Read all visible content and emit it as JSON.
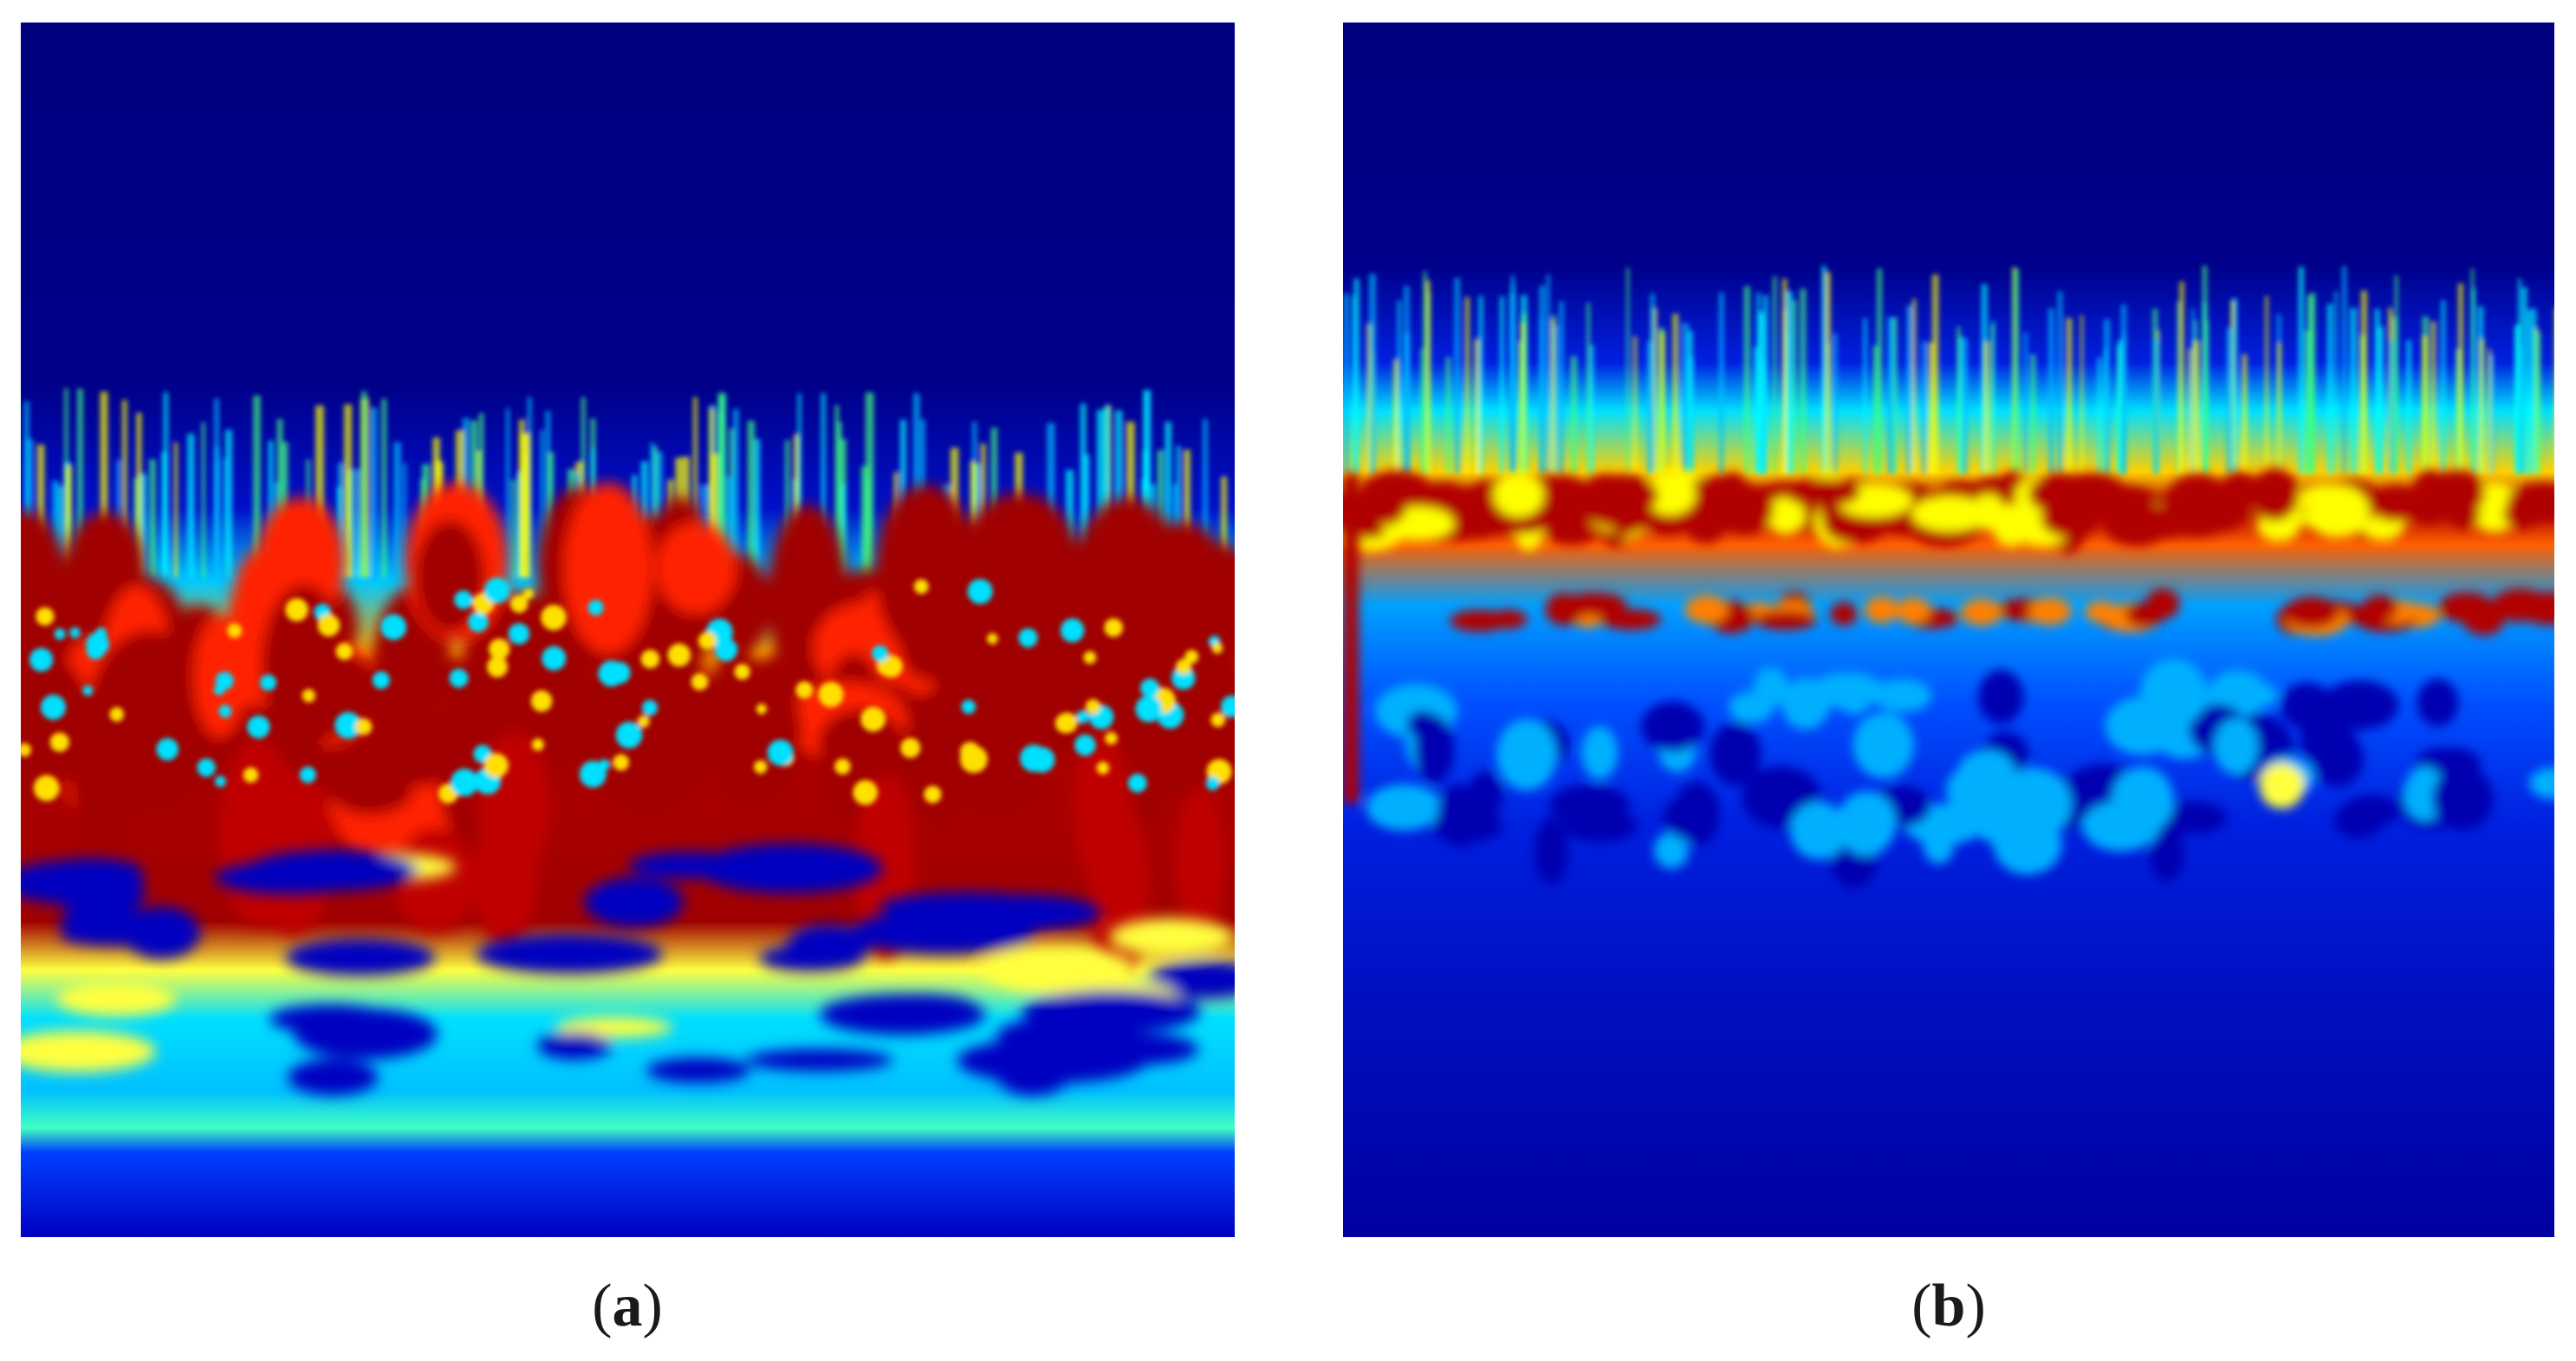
{
  "figure": {
    "panels": [
      {
        "id": "a",
        "caption_label": "a",
        "image": "wavelet-scalogram-a",
        "colormap": "jet"
      },
      {
        "id": "b",
        "caption_label": "b",
        "image": "wavelet-scalogram-b",
        "colormap": "jet"
      }
    ],
    "colors": {
      "deep_blue": "#00007f",
      "blue": "#0000ff",
      "cyan": "#00ffff",
      "yellow": "#ffff00",
      "red": "#ff0000",
      "dark_red": "#7f0000"
    }
  }
}
